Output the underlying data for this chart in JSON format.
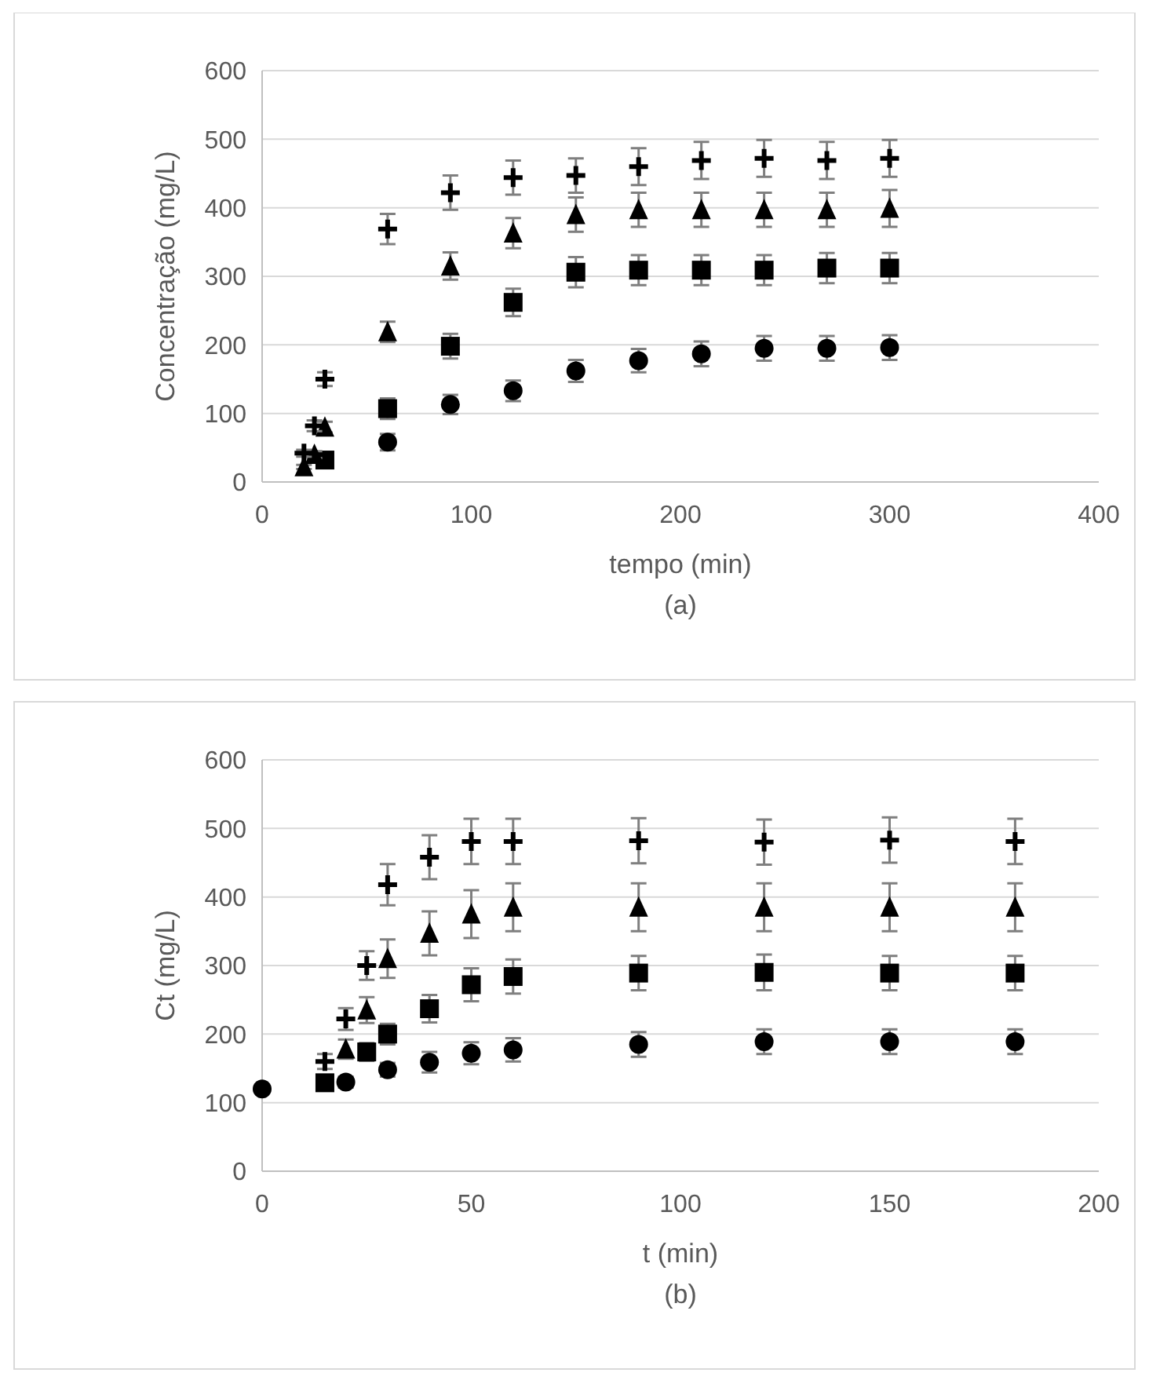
{
  "chart_data": [
    {
      "type": "scatter",
      "xlabel": "tempo (min)",
      "ylabel": "Concentração (mg/L)",
      "annotations": [
        "(a)"
      ],
      "xlim": [
        0,
        400
      ],
      "xticks": [
        0,
        100,
        200,
        300,
        400
      ],
      "ylim": [
        0,
        600
      ],
      "yticks": [
        0,
        100,
        200,
        300,
        400,
        500,
        600
      ],
      "grid": "y",
      "legend": false,
      "x": [
        20,
        25,
        30,
        60,
        90,
        120,
        150,
        180,
        210,
        240,
        270,
        300
      ],
      "series": [
        {
          "color": "#000000",
          "marker": "circle",
          "values": [
            null,
            null,
            null,
            58,
            113,
            133,
            162,
            177,
            187,
            195,
            195,
            196
          ],
          "errors": [
            null,
            null,
            null,
            12,
            14,
            15,
            16,
            17,
            18,
            18,
            18,
            18
          ]
        },
        {
          "color": "#000000",
          "marker": "square",
          "values": [
            null,
            null,
            32,
            107,
            198,
            262,
            306,
            309,
            309,
            309,
            312,
            312
          ],
          "errors": [
            null,
            null,
            5,
            15,
            18,
            20,
            22,
            22,
            22,
            22,
            22,
            22
          ]
        },
        {
          "color": "#000000",
          "marker": "triangle",
          "values": [
            22,
            40,
            80,
            219,
            315,
            363,
            390,
            397,
            397,
            397,
            397,
            399
          ],
          "errors": [
            3,
            5,
            8,
            15,
            20,
            22,
            25,
            25,
            25,
            25,
            25,
            27
          ]
        },
        {
          "color": "#000000",
          "marker": "cross",
          "values": [
            42,
            82,
            150,
            369,
            422,
            444,
            447,
            460,
            469,
            472,
            469,
            472
          ],
          "errors": [
            5,
            8,
            10,
            22,
            25,
            25,
            25,
            27,
            27,
            27,
            27,
            27
          ]
        }
      ]
    },
    {
      "type": "scatter",
      "xlabel": "t (min)",
      "ylabel": "Ct (mg/L)",
      "annotations": [
        "(b)"
      ],
      "xlim": [
        0,
        200
      ],
      "xticks": [
        0,
        50,
        100,
        150,
        200
      ],
      "ylim": [
        0,
        600
      ],
      "yticks": [
        0,
        100,
        200,
        300,
        400,
        500,
        600
      ],
      "grid": "y",
      "legend": false,
      "x": [
        0,
        15,
        20,
        25,
        30,
        40,
        50,
        60,
        90,
        120,
        150,
        180
      ],
      "series": [
        {
          "color": "#000000",
          "marker": "circle",
          "values": [
            120,
            null,
            130,
            null,
            148,
            159,
            172,
            177,
            185,
            189,
            189,
            189
          ],
          "errors": [
            6,
            null,
            8,
            null,
            10,
            15,
            16,
            17,
            18,
            18,
            18,
            18
          ]
        },
        {
          "color": "#000000",
          "marker": "square",
          "values": [
            null,
            129,
            null,
            174,
            200,
            237,
            272,
            284,
            289,
            290,
            289,
            289
          ],
          "errors": [
            null,
            null,
            null,
            13,
            15,
            20,
            24,
            25,
            25,
            26,
            25,
            25
          ]
        },
        {
          "color": "#000000",
          "marker": "triangle",
          "values": [
            null,
            null,
            178,
            235,
            310,
            347,
            375,
            385,
            385,
            385,
            385,
            385
          ],
          "errors": [
            null,
            null,
            14,
            19,
            28,
            32,
            35,
            35,
            35,
            35,
            35,
            35
          ]
        },
        {
          "color": "#000000",
          "marker": "cross",
          "values": [
            null,
            160,
            222,
            300,
            418,
            458,
            481,
            481,
            482,
            480,
            483,
            481
          ],
          "errors": [
            null,
            11,
            16,
            21,
            30,
            32,
            33,
            33,
            33,
            33,
            33,
            33
          ]
        }
      ]
    }
  ]
}
